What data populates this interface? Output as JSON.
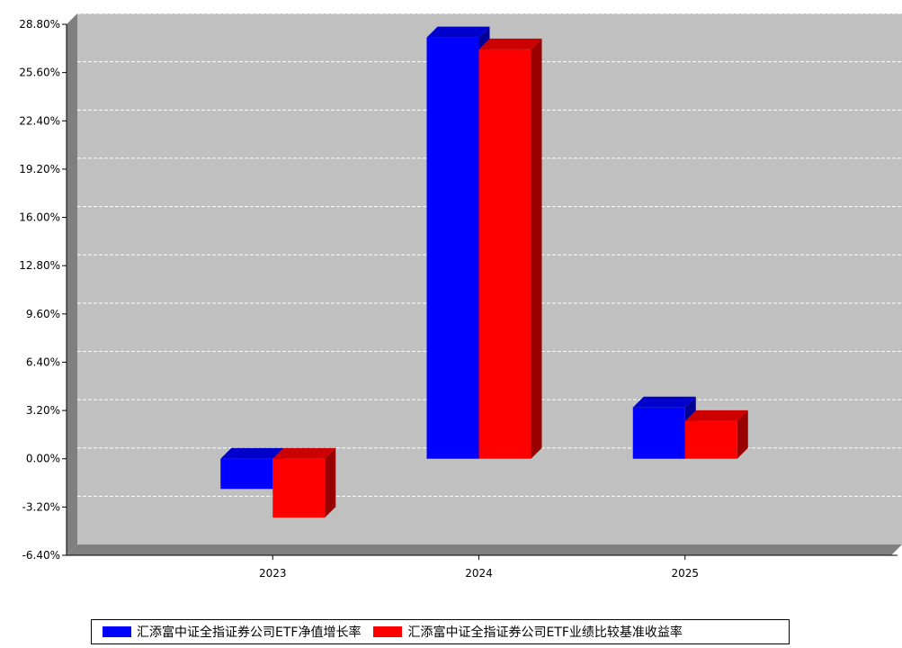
{
  "chart_data": {
    "type": "bar",
    "categories": [
      "2023",
      "2024",
      "2025"
    ],
    "series": [
      {
        "name": "汇添富中证全指证券公司ETF净值增长率",
        "color": "#0000FF",
        "values": [
          -2.0,
          27.93,
          3.4
        ]
      },
      {
        "name": "汇添富中证全指证券公司ETF业绩比较基准收益率",
        "color": "#FF0000",
        "values": [
          -3.9,
          27.14,
          2.5
        ]
      }
    ],
    "ylim": [
      -6.4,
      28.8
    ],
    "y_ticks": [
      "-6.40%",
      "-3.20%",
      "0.00%",
      "3.20%",
      "6.40%",
      "9.60%",
      "12.80%",
      "16.00%",
      "19.20%",
      "22.40%",
      "25.60%",
      "28.80%"
    ],
    "grid": true,
    "legend_position": "bottom",
    "plot_background": "#C0C0C0",
    "title": "",
    "xlabel": "",
    "ylabel": ""
  }
}
